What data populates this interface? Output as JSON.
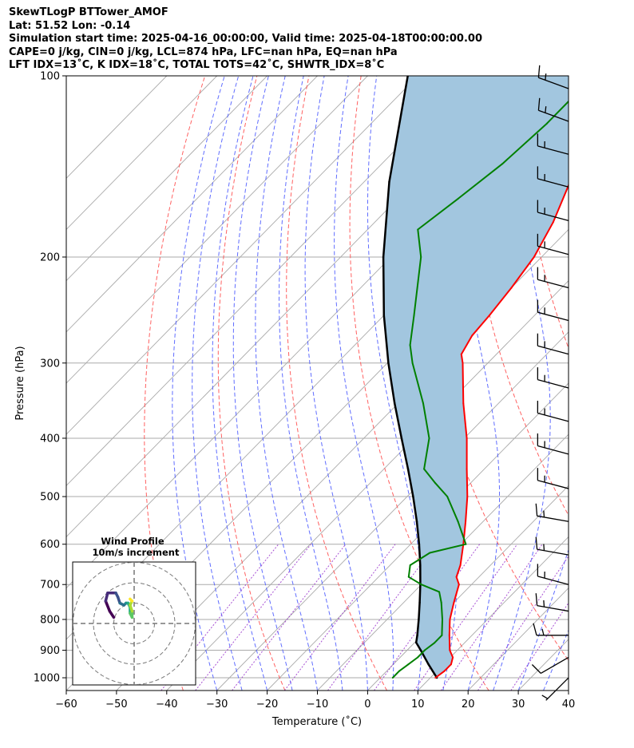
{
  "title_lines": [
    "SkewTLogP BTTower_AMOF",
    "Lat: 51.52   Lon: -0.14",
    "Simulation start time: 2025-04-16_00:00:00, Valid time: 2025-04-18T00:00:00.00",
    "CAPE=0 j/kg, CIN=0 j/kg, LCL=874 hPa, LFC=nan hPa, EQ=nan hPa",
    "LFT IDX=13˚C, K IDX=18˚C, TOTAL TOTS=42˚C, SHWTR_IDX=8˚C"
  ],
  "colors": {
    "temperature": "#ff0000",
    "dewpoint": "#008000",
    "parcel": "#000000",
    "shade": "#a2c6df",
    "dry_adiabat": "#ff5050",
    "moist_adiabat": "#4f5dff",
    "mixing_ratio": "#9933cc",
    "isotherm": "#aaaaaa"
  },
  "chart_data": {
    "type": "skewt",
    "xlabel": "Temperature (˚C)",
    "ylabel": "Pressure (hPa)",
    "xlim": [
      -60,
      40
    ],
    "ylim": [
      1050,
      100
    ],
    "x_ticks": [
      -60,
      -50,
      -40,
      -30,
      -20,
      -10,
      0,
      10,
      20,
      30,
      40
    ],
    "x_tick_labels": [
      "−60",
      "−50",
      "−40",
      "−30",
      "−20",
      "−10",
      "0",
      "10",
      "20",
      "30",
      "40"
    ],
    "y_ticks": [
      1000,
      900,
      800,
      700,
      600,
      500,
      400,
      300,
      200,
      100
    ],
    "temperature": [
      {
        "p": 1000,
        "t": 11
      },
      {
        "p": 975,
        "t": 11.5
      },
      {
        "p": 950,
        "t": 11.5
      },
      {
        "p": 925,
        "t": 10.5
      },
      {
        "p": 900,
        "t": 8.5
      },
      {
        "p": 850,
        "t": 5.5
      },
      {
        "p": 800,
        "t": 2.5
      },
      {
        "p": 750,
        "t": 0
      },
      {
        "p": 700,
        "t": -2.5
      },
      {
        "p": 680,
        "t": -4.5
      },
      {
        "p": 650,
        "t": -6
      },
      {
        "p": 600,
        "t": -9.5
      },
      {
        "p": 550,
        "t": -13.5
      },
      {
        "p": 500,
        "t": -18
      },
      {
        "p": 450,
        "t": -23.5
      },
      {
        "p": 400,
        "t": -29.5
      },
      {
        "p": 350,
        "t": -37
      },
      {
        "p": 300,
        "t": -45
      },
      {
        "p": 290,
        "t": -47
      },
      {
        "p": 270,
        "t": -48.5
      },
      {
        "p": 250,
        "t": -49
      },
      {
        "p": 225,
        "t": -50
      },
      {
        "p": 200,
        "t": -51.5
      },
      {
        "p": 175,
        "t": -54.5
      },
      {
        "p": 150,
        "t": -59
      },
      {
        "p": 125,
        "t": -64.5
      },
      {
        "p": 115,
        "t": -68
      },
      {
        "p": 100,
        "t": -70
      }
    ],
    "dewpoint": [
      {
        "p": 1000,
        "t": 2.5
      },
      {
        "p": 975,
        "t": 2.5
      },
      {
        "p": 950,
        "t": 3
      },
      {
        "p": 925,
        "t": 3.5
      },
      {
        "p": 900,
        "t": 3.5
      },
      {
        "p": 875,
        "t": 4
      },
      {
        "p": 850,
        "t": 4
      },
      {
        "p": 800,
        "t": 1
      },
      {
        "p": 750,
        "t": -2.5
      },
      {
        "p": 720,
        "t": -5
      },
      {
        "p": 700,
        "t": -10
      },
      {
        "p": 680,
        "t": -14
      },
      {
        "p": 650,
        "t": -16
      },
      {
        "p": 620,
        "t": -14.5
      },
      {
        "p": 600,
        "t": -9
      },
      {
        "p": 550,
        "t": -15
      },
      {
        "p": 500,
        "t": -22
      },
      {
        "p": 475,
        "t": -27
      },
      {
        "p": 450,
        "t": -32
      },
      {
        "p": 400,
        "t": -37
      },
      {
        "p": 350,
        "t": -45
      },
      {
        "p": 300,
        "t": -55
      },
      {
        "p": 280,
        "t": -59
      },
      {
        "p": 250,
        "t": -64
      },
      {
        "p": 200,
        "t": -74
      },
      {
        "p": 180,
        "t": -80
      },
      {
        "p": 160,
        "t": -78
      },
      {
        "p": 140,
        "t": -76
      },
      {
        "p": 120,
        "t": -75
      },
      {
        "p": 100,
        "t": -75
      }
    ],
    "parcel": [
      {
        "p": 1000,
        "t": 11.3
      },
      {
        "p": 950,
        "t": 7
      },
      {
        "p": 900,
        "t": 2.7
      },
      {
        "p": 874,
        "t": 0.3
      },
      {
        "p": 850,
        "t": -0.9
      },
      {
        "p": 800,
        "t": -3.7
      },
      {
        "p": 750,
        "t": -6.8
      },
      {
        "p": 700,
        "t": -10.2
      },
      {
        "p": 650,
        "t": -14
      },
      {
        "p": 600,
        "t": -18.3
      },
      {
        "p": 550,
        "t": -23.2
      },
      {
        "p": 500,
        "t": -28.8
      },
      {
        "p": 450,
        "t": -35.2
      },
      {
        "p": 400,
        "t": -42.5
      },
      {
        "p": 350,
        "t": -50.7
      },
      {
        "p": 300,
        "t": -59.8
      },
      {
        "p": 250,
        "t": -70
      },
      {
        "p": 200,
        "t": -81.5
      },
      {
        "p": 150,
        "t": -95
      },
      {
        "p": 100,
        "t": -112
      }
    ],
    "wind_barbs": [
      {
        "p": 1000,
        "speed_kt": 5,
        "dir_deg": 225
      },
      {
        "p": 925,
        "speed_kt": 10,
        "dir_deg": 240
      },
      {
        "p": 850,
        "speed_kt": 15,
        "dir_deg": 270
      },
      {
        "p": 775,
        "speed_kt": 15,
        "dir_deg": 280
      },
      {
        "p": 700,
        "speed_kt": 15,
        "dir_deg": 285
      },
      {
        "p": 625,
        "speed_kt": 15,
        "dir_deg": 280
      },
      {
        "p": 550,
        "speed_kt": 15,
        "dir_deg": 280
      },
      {
        "p": 485,
        "speed_kt": 15,
        "dir_deg": 285
      },
      {
        "p": 425,
        "speed_kt": 15,
        "dir_deg": 285
      },
      {
        "p": 375,
        "speed_kt": 15,
        "dir_deg": 285
      },
      {
        "p": 330,
        "speed_kt": 15,
        "dir_deg": 285
      },
      {
        "p": 290,
        "speed_kt": 15,
        "dir_deg": 285
      },
      {
        "p": 255,
        "speed_kt": 15,
        "dir_deg": 285
      },
      {
        "p": 225,
        "speed_kt": 15,
        "dir_deg": 285
      },
      {
        "p": 198,
        "speed_kt": 15,
        "dir_deg": 285
      },
      {
        "p": 174,
        "speed_kt": 15,
        "dir_deg": 285
      },
      {
        "p": 153,
        "speed_kt": 15,
        "dir_deg": 285
      },
      {
        "p": 135,
        "speed_kt": 15,
        "dir_deg": 285
      },
      {
        "p": 119,
        "speed_kt": 15,
        "dir_deg": 290
      },
      {
        "p": 105,
        "speed_kt": 15,
        "dir_deg": 290
      }
    ],
    "wind_profile_inset": {
      "title": "Wind Profile",
      "subtitle": "10m/s increment",
      "ring_increment_ms": 10,
      "hodograph": [
        {
          "u": -10,
          "v": 3
        },
        {
          "u": -12,
          "v": 6
        },
        {
          "u": -14,
          "v": 11
        },
        {
          "u": -13,
          "v": 15
        },
        {
          "u": -9,
          "v": 15
        },
        {
          "u": -8,
          "v": 13
        },
        {
          "u": -7,
          "v": 10
        },
        {
          "u": -5,
          "v": 9
        },
        {
          "u": -4,
          "v": 10
        },
        {
          "u": -3,
          "v": 10
        },
        {
          "u": -2,
          "v": 8
        },
        {
          "u": -2,
          "v": 5
        },
        {
          "u": -1,
          "v": 3
        },
        {
          "u": -1,
          "v": 6
        },
        {
          "u": -2,
          "v": 9
        },
        {
          "u": -1,
          "v": 11
        },
        {
          "u": -2,
          "v": 12
        }
      ]
    }
  }
}
